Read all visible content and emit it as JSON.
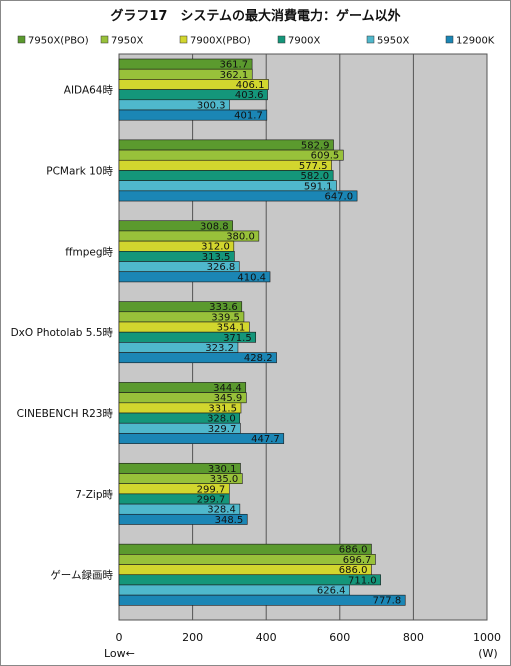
{
  "chart_data": {
    "type": "bar",
    "orientation": "horizontal",
    "title": "グラフ17　システムの最大消費電力：ゲーム以外",
    "categories": [
      "AIDA64時",
      "PCMark 10時",
      "ffmpeg時",
      "DxO Photolab 5.5時",
      "CINEBENCH R23時",
      "7-Zip時",
      "ゲーム録画時"
    ],
    "series": [
      {
        "name": "7950X(PBO)",
        "color": "#5b9a2e",
        "values": [
          361.7,
          582.9,
          308.8,
          333.6,
          344.4,
          330.1,
          686.0
        ]
      },
      {
        "name": "7950X",
        "color": "#98c13a",
        "values": [
          362.1,
          609.5,
          380.0,
          339.5,
          345.9,
          335.0,
          696.7
        ]
      },
      {
        "name": "7900X(PBO)",
        "color": "#d2d62e",
        "values": [
          406.1,
          577.5,
          312.0,
          354.1,
          331.5,
          299.7,
          686.0
        ]
      },
      {
        "name": "7900X",
        "color": "#14967a",
        "values": [
          403.6,
          582.0,
          313.5,
          371.5,
          328.0,
          299.7,
          711.0
        ]
      },
      {
        "name": "5950X",
        "color": "#4fb8cc",
        "values": [
          300.3,
          591.1,
          326.8,
          323.2,
          329.7,
          328.4,
          626.4
        ]
      },
      {
        "name": "12900K",
        "color": "#1b86b5",
        "values": [
          401.7,
          647.0,
          410.4,
          428.2,
          447.7,
          348.5,
          777.8
        ]
      }
    ],
    "xlim": [
      0,
      1000
    ],
    "xticks": [
      0,
      200,
      400,
      600,
      800,
      1000
    ],
    "xunit": "(W)",
    "direction_note": "Low←",
    "grid": true,
    "legend_position": "top",
    "background_color": "#c8c8c8"
  }
}
